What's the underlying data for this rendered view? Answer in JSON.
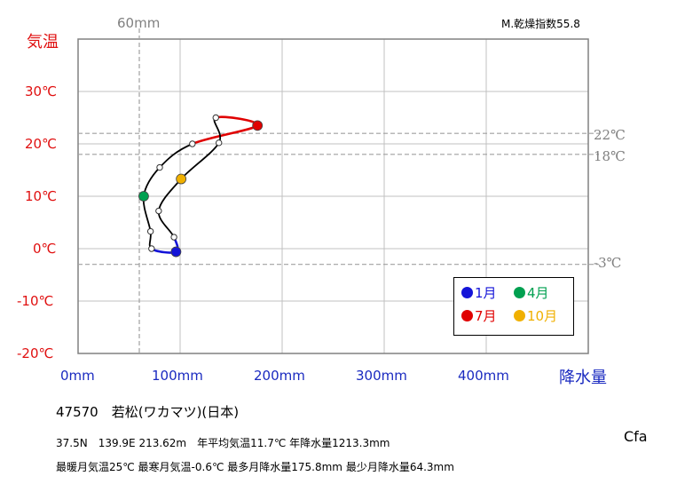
{
  "chart_data": {
    "type": "line",
    "y_axis_label": "気温",
    "x_axis_label": "降水量",
    "top_right_label": "M.乾燥指数55.8",
    "y_ticks": [
      "30℃",
      "20℃",
      "10℃",
      "0℃",
      "-10℃",
      "-20℃"
    ],
    "y_tick_values": [
      30,
      20,
      10,
      0,
      -10,
      -20
    ],
    "x_ticks": [
      "0mm",
      "100mm",
      "200mm",
      "300mm",
      "400mm"
    ],
    "x_tick_values": [
      0,
      100,
      200,
      300,
      400
    ],
    "xlim": [
      0,
      500
    ],
    "ylim": [
      -20,
      40
    ],
    "reference_lines": {
      "vertical": [
        {
          "value": 60,
          "label": "60mm"
        }
      ],
      "horizontal": [
        {
          "value": 22,
          "label": "22℃"
        },
        {
          "value": 18,
          "label": "18℃"
        },
        {
          "value": -3,
          "label": "-3℃"
        }
      ]
    },
    "months": [
      {
        "month": 1,
        "precip": 96,
        "temp": -0.6
      },
      {
        "month": 2,
        "precip": 72,
        "temp": 0
      },
      {
        "month": 3,
        "precip": 71,
        "temp": 3.3
      },
      {
        "month": 4,
        "precip": 64.3,
        "temp": 10
      },
      {
        "month": 5,
        "precip": 80,
        "temp": 15.5
      },
      {
        "month": 6,
        "precip": 112,
        "temp": 20
      },
      {
        "month": 7,
        "precip": 175.8,
        "temp": 23.5
      },
      {
        "month": 8,
        "precip": 135,
        "temp": 25
      },
      {
        "month": 9,
        "precip": 138,
        "temp": 20.2
      },
      {
        "month": 10,
        "precip": 101,
        "temp": 13.3
      },
      {
        "month": 11,
        "precip": 79,
        "temp": 7.2
      },
      {
        "month": 12,
        "precip": 94,
        "temp": 2.2
      }
    ],
    "highlight_months": [
      1,
      4,
      7,
      10
    ],
    "legend": [
      {
        "label": "1月",
        "color": "#1414d8",
        "text_color": "#1414d8"
      },
      {
        "label": "4月",
        "color": "#00a050",
        "text_color": "#00a050"
      },
      {
        "label": "7月",
        "color": "#e00000",
        "text_color": "#e00000"
      },
      {
        "label": "10月",
        "color": "#f0b000",
        "text_color": "#f0b000"
      }
    ],
    "segment_colors": {
      "winter": "#1414d8",
      "summer": "#e00000",
      "other": "#000000"
    }
  },
  "station": {
    "title": "47570　若松(ワカマツ)(日本)",
    "line1": "37.5N　139.9E 213.62m　年平均気温11.7℃ 年降水量1213.3mm",
    "line2": "最暖月気温25℃ 最寒月気温-0.6℃ 最多月降水量175.8mm 最少月降水量64.3mm",
    "climate_class": "Cfa"
  }
}
